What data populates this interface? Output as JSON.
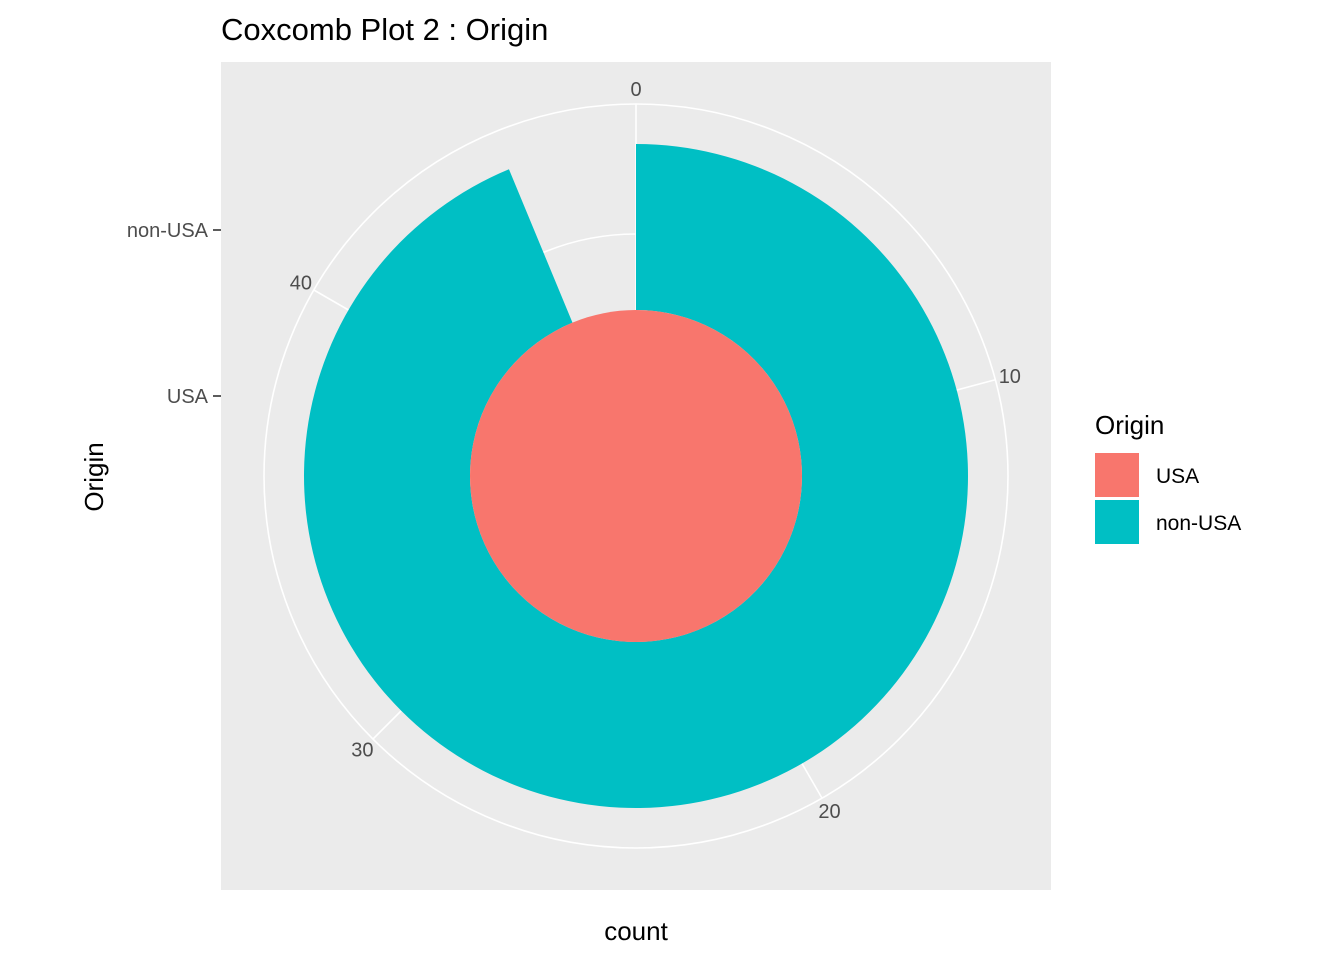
{
  "chart_data": {
    "type": "pie",
    "subtype": "coxcomb (stacked bar in polar coordinates, theta = count)",
    "title": "Coxcomb Plot 2 : Origin",
    "xlabel": "count",
    "ylabel": "Origin",
    "categories": [
      "USA",
      "non-USA"
    ],
    "values": [
      48,
      45
    ],
    "colors": {
      "USA": "#F8766D",
      "non-USA": "#00BFC4"
    },
    "theta_axis": {
      "label": "count",
      "range": [
        0,
        48
      ],
      "ticks": [
        0,
        10,
        20,
        30,
        40
      ]
    },
    "radial_axis": {
      "label": "Origin",
      "ticks": [
        "USA",
        "non-USA"
      ]
    },
    "legend": {
      "title": "Origin",
      "position": "right",
      "entries": [
        "USA",
        "non-USA"
      ]
    },
    "panel_background": "#EBEBEB",
    "grid_color": "#FFFFFF",
    "grid": true
  }
}
